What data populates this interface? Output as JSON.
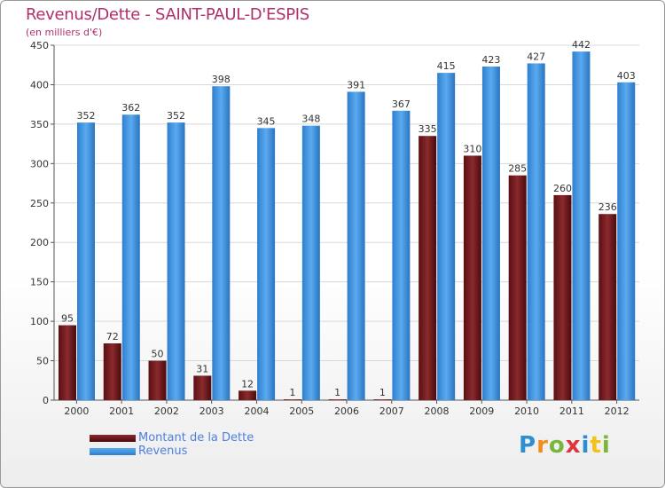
{
  "header": {
    "title": "Revenus/Dette - SAINT-PAUL-D'ESPIS",
    "subtitle": "(en milliers d'€)"
  },
  "logo": {
    "text": "Proxiti",
    "letters": [
      "P",
      "r",
      "o",
      "x",
      "i",
      "t",
      "i"
    ]
  },
  "chart_data": {
    "type": "bar",
    "title": "Revenus/Dette - SAINT-PAUL-D'ESPIS",
    "subtitle": "(en milliers d'€)",
    "categories": [
      "2000",
      "2001",
      "2002",
      "2003",
      "2004",
      "2005",
      "2006",
      "2007",
      "2008",
      "2009",
      "2010",
      "2011",
      "2012"
    ],
    "series": [
      {
        "name": "Montant de la Dette",
        "color": "#6b1316",
        "values": [
          95,
          72,
          50,
          31,
          12,
          1,
          1,
          1,
          335,
          310,
          285,
          260,
          236
        ]
      },
      {
        "name": "Revenus",
        "color": "#3b8fd9",
        "values": [
          352,
          362,
          352,
          398,
          345,
          348,
          391,
          367,
          415,
          423,
          427,
          442,
          403
        ]
      }
    ],
    "ylim": [
      0,
      450
    ],
    "yticks": [
      0,
      50,
      100,
      150,
      200,
      250,
      300,
      350,
      400,
      450
    ],
    "grid": true,
    "legend": "bottom-left",
    "xlabel": "",
    "ylabel": ""
  }
}
